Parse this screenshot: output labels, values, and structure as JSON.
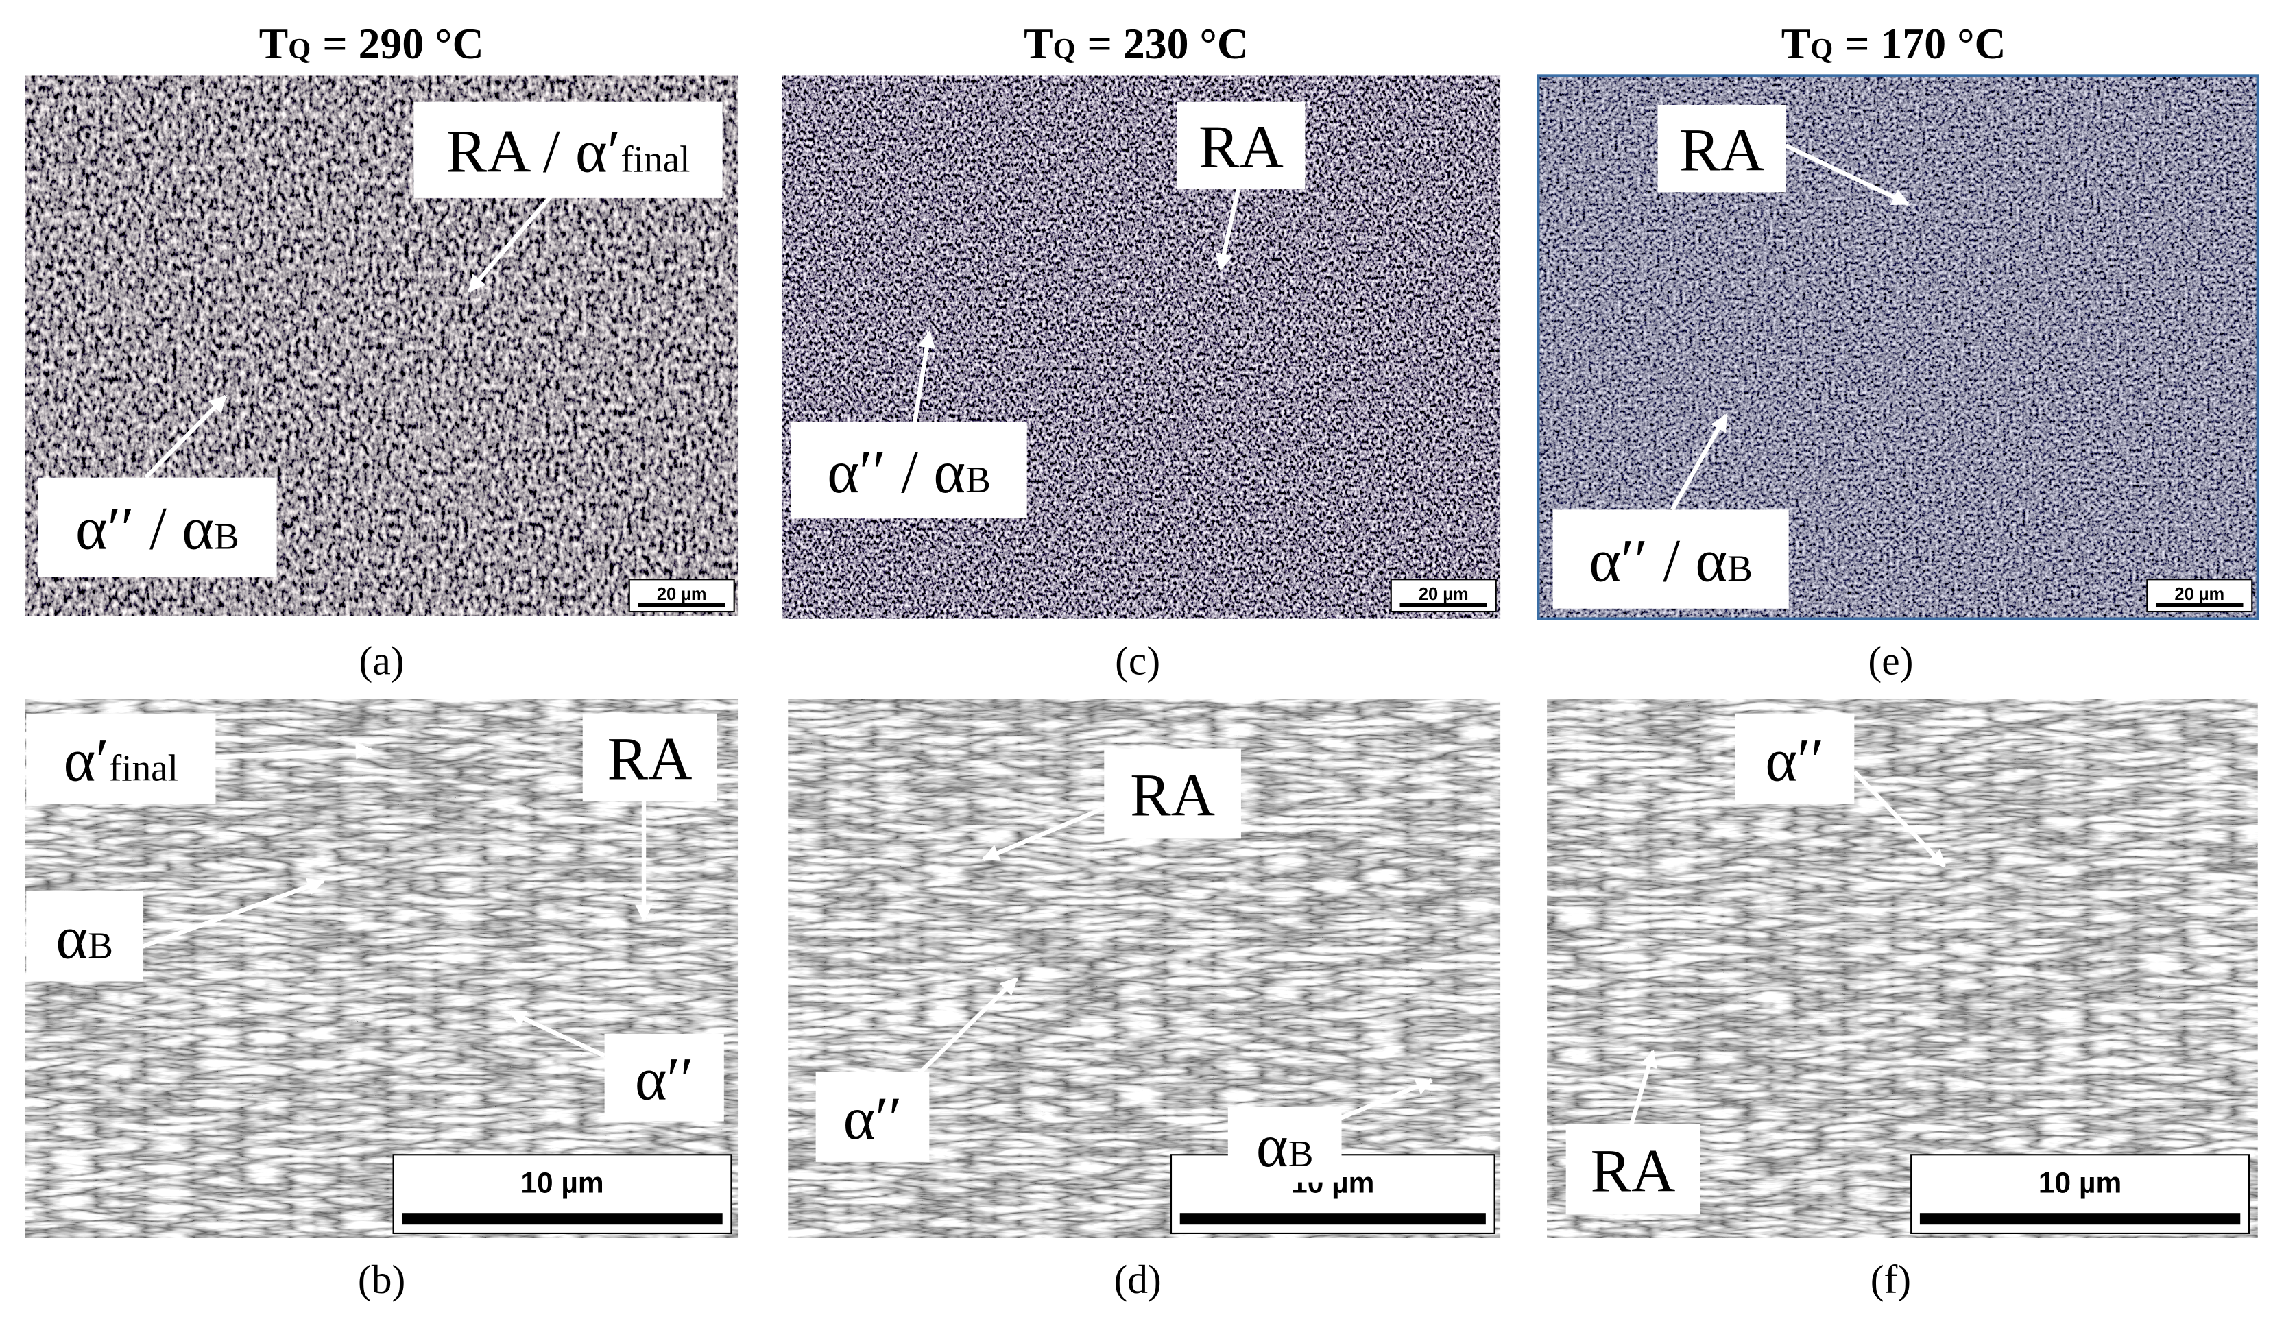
{
  "headers": [
    {
      "symbol": "T",
      "subscript": "Q",
      "rest": "= 290 °C"
    },
    {
      "symbol": "T",
      "subscript": "Q",
      "rest": "= 230 °C"
    },
    {
      "symbol": "T",
      "subscript": "Q",
      "rest": "= 170 °C"
    }
  ],
  "panels": [
    {
      "label": "(a)",
      "scale_bar": "20 µm",
      "annotations": [
        {
          "text": "RA / α′",
          "sub": "final"
        },
        {
          "text": "α′′ / α",
          "sub": "B"
        }
      ]
    },
    {
      "label": "(b)",
      "scale_bar": "10 µm",
      "annotations": [
        {
          "text": "α′",
          "sub": "final"
        },
        {
          "text": "RA"
        },
        {
          "text": "α",
          "sub": "B"
        },
        {
          "text": "α′′"
        }
      ]
    },
    {
      "label": "(c)",
      "scale_bar": "20 µm",
      "annotations": [
        {
          "text": "RA"
        },
        {
          "text": "α′′ / α",
          "sub": "B"
        }
      ]
    },
    {
      "label": "(d)",
      "scale_bar": "10 µm",
      "annotations": [
        {
          "text": "RA"
        },
        {
          "text": "α′′"
        },
        {
          "text": "α",
          "sub": "B"
        }
      ]
    },
    {
      "label": "(e)",
      "scale_bar": "20 µm",
      "annotations": [
        {
          "text": "RA"
        },
        {
          "text": "α′′ / α",
          "sub": "B"
        }
      ]
    },
    {
      "label": "(f)",
      "scale_bar": "10 µm",
      "annotations": [
        {
          "text": "α′′"
        },
        {
          "text": "RA"
        }
      ]
    }
  ]
}
